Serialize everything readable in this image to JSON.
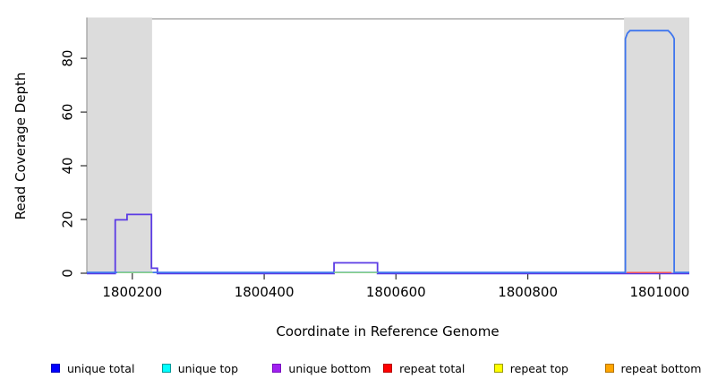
{
  "figure": {
    "background": "#ffffff"
  },
  "chart_data": {
    "type": "line",
    "subtype": "step-coverage-plot",
    "title": "",
    "xlabel": "Coordinate in Reference Genome",
    "ylabel": "Read Coverage Depth",
    "xlim": [
      1800131,
      1801045
    ],
    "ylim": [
      0,
      94.7
    ],
    "x_ticks": [
      1800200,
      1800400,
      1800600,
      1800800,
      1801000
    ],
    "y_ticks": [
      0,
      20,
      40,
      60,
      80
    ],
    "grid": false,
    "legend_position": "bottom",
    "colors": {
      "background": "#ffffff",
      "box": "#9b9b9b",
      "tick": "#303030",
      "text": "#000000",
      "region": "#dcdcdc"
    },
    "shaded_regions": [
      {
        "name": "shaded-region-left",
        "x0": 1800131,
        "x1": 1800230,
        "color": "#dcdcdc"
      },
      {
        "name": "shaded-region-right",
        "x0": 1800946,
        "x1": 1801045,
        "color": "#dcdcdc"
      }
    ],
    "series": [
      {
        "key": "unique-bottom",
        "draw": {
          "color": "#5b3be4",
          "width": 1.8,
          "dy": 0.4,
          "z": 1
        },
        "points": [
          [
            1800131,
            0
          ],
          [
            1800174,
            0
          ],
          [
            1800174,
            20
          ],
          [
            1800192,
            20
          ],
          [
            1800192,
            22
          ],
          [
            1800229,
            22
          ],
          [
            1800229,
            2
          ],
          [
            1800238,
            2
          ],
          [
            1800238,
            0
          ],
          [
            1800506,
            0
          ],
          [
            1800506,
            4
          ],
          [
            1800572,
            4
          ],
          [
            1800572,
            0
          ],
          [
            1801045,
            0
          ]
        ]
      },
      {
        "key": "unique-total",
        "draw": {
          "color": "#3f76ee",
          "width": 1.8,
          "dy": -0.9,
          "z": 2
        },
        "points": [
          [
            1800131,
            0
          ],
          [
            1800948,
            0
          ],
          [
            1800948,
            87
          ],
          [
            1800951,
            89
          ],
          [
            1800955,
            90
          ],
          [
            1801013,
            90
          ],
          [
            1801017,
            89
          ],
          [
            1801020,
            88
          ],
          [
            1801022,
            87
          ],
          [
            1801022,
            0
          ],
          [
            1801045,
            0
          ]
        ]
      },
      {
        "key": "baseline-annotation-green",
        "draw": {
          "color": "#86d386",
          "width": 1.5,
          "dy": -0.8,
          "z": 3
        },
        "points": [
          [
            1800177,
            0
          ],
          [
            1800231,
            0
          ]
        ],
        "segments": [
          [
            1800177,
            1800231
          ],
          [
            1800506,
            1800572
          ]
        ]
      },
      {
        "key": "repeat-total",
        "draw": {
          "color": "#f0545c",
          "width": 1.5,
          "dy": -0.8,
          "z": 4
        },
        "points": [
          [
            1800950,
            0
          ],
          [
            1801018,
            0
          ]
        ]
      },
      {
        "key": "unique-top",
        "draw": null,
        "points": [
          [
            1800131,
            0
          ],
          [
            1801045,
            0
          ]
        ]
      },
      {
        "key": "repeat-top",
        "draw": null,
        "points": [
          [
            1800131,
            0
          ],
          [
            1801045,
            0
          ]
        ]
      },
      {
        "key": "repeat-bottom",
        "draw": null,
        "points": [
          [
            1800131,
            0
          ],
          [
            1801045,
            0
          ]
        ]
      }
    ],
    "legend": {
      "items": [
        {
          "key": "unique-total",
          "label": "unique total",
          "fill": "#0000ff",
          "border": "#0000bb"
        },
        {
          "key": "unique-top",
          "label": "unique top",
          "fill": "#00ffff",
          "border": "#009a9a"
        },
        {
          "key": "unique-bottom",
          "label": "unique bottom",
          "fill": "#a020f0",
          "border": "#7a10c0"
        },
        {
          "key": "repeat-total",
          "label": "repeat total",
          "fill": "#ff0000",
          "border": "#b80000"
        },
        {
          "key": "repeat-top",
          "label": "repeat top",
          "fill": "#ffff00",
          "border": "#9a9a00"
        },
        {
          "key": "repeat-bottom",
          "label": "repeat bottom",
          "fill": "#ffa500",
          "border": "#b37300"
        }
      ]
    }
  }
}
